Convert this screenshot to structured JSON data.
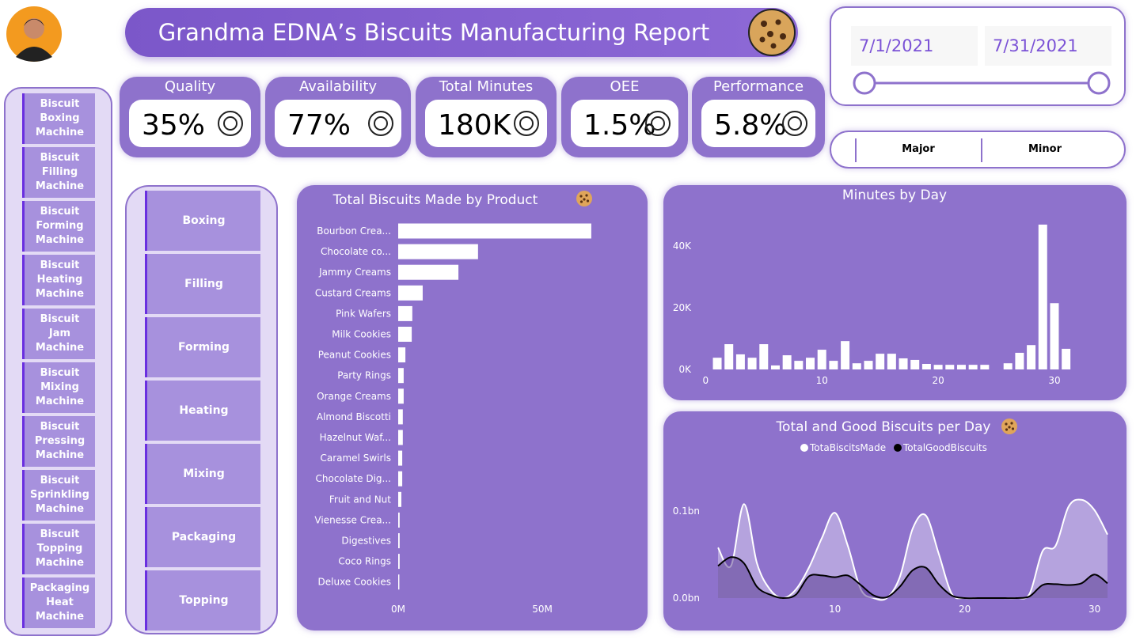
{
  "header": {
    "title": "Grandma EDNA’s Biscuits Manufacturing Report"
  },
  "date_slicer": {
    "start": "7/1/2021",
    "end": "7/31/2021"
  },
  "type_buttons": [
    "Major",
    "Minor"
  ],
  "kpis": [
    {
      "label": "Quality",
      "value": "35%"
    },
    {
      "label": "Availability",
      "value": "77%"
    },
    {
      "label": "Total Minutes",
      "value": "180K"
    },
    {
      "label": "OEE",
      "value": "1.5%"
    },
    {
      "label": "Performance",
      "value": "5.8%"
    }
  ],
  "machines": [
    "Biscuit Boxing Machine",
    "Biscuit Filling Machine",
    "Biscuit Forming Machine",
    "Biscuit Heating Machine",
    "Biscuit Jam Machine",
    "Biscuit Mixing Machine",
    "Biscuit Pressing Machine",
    "Biscuit Sprinkling Machine",
    "Biscuit Topping Machine",
    "Packaging Heat Machine"
  ],
  "processes": [
    "Boxing",
    "Filling",
    "Forming",
    "Heating",
    "Mixing",
    "Packaging",
    "Topping"
  ],
  "chart_data": [
    {
      "type": "hbar",
      "title": "Total Biscuits Made by Product",
      "categories": [
        "Bourbon Crea...",
        "Chocolate co...",
        "Jammy Creams",
        "Custard Creams",
        "Pink Wafers",
        "Milk Cookies",
        "Peanut Cookies",
        "Party Rings",
        "Orange Creams",
        "Almond Biscotti",
        "Hazelnut Waf...",
        "Caramel Swirls",
        "Chocolate Dig...",
        "Fruit and Nut",
        "Vienesse Crea...",
        "Digestives",
        "Coco Rings",
        "Deluxe Cookies"
      ],
      "values": [
        67000000,
        27700000,
        20900000,
        8500000,
        4900000,
        4700000,
        2500000,
        1900000,
        1900000,
        1600000,
        1600000,
        1400000,
        1400000,
        1100000,
        500000,
        500000,
        500000,
        400000
      ],
      "color": "#ffffff",
      "xlim": [
        0,
        84000000
      ],
      "xticks": [
        {
          "value": 0,
          "label": "0M"
        },
        {
          "value": 50000000,
          "label": "50M"
        }
      ]
    },
    {
      "type": "bar",
      "title": "Minutes by Day",
      "x": [
        1,
        2,
        3,
        4,
        5,
        6,
        7,
        8,
        9,
        10,
        11,
        12,
        13,
        14,
        15,
        16,
        17,
        18,
        19,
        20,
        21,
        22,
        23,
        24,
        26,
        27,
        28,
        29,
        30,
        31
      ],
      "values": [
        3800,
        8200,
        4900,
        3800,
        8200,
        1300,
        4600,
        2800,
        3800,
        6400,
        2800,
        9200,
        2000,
        2800,
        5100,
        5100,
        3600,
        3100,
        1800,
        1500,
        1500,
        1500,
        1500,
        1500,
        2000,
        5400,
        7900,
        47000,
        21500,
        6700
      ],
      "color": "#ffffff",
      "xlim": [
        -0.5,
        31.5
      ],
      "xticks": [
        0,
        10,
        20,
        30
      ],
      "ylim": [
        0,
        48000
      ],
      "yticks": [
        {
          "value": 0,
          "label": "0K"
        },
        {
          "value": 20000,
          "label": "20K"
        },
        {
          "value": 40000,
          "label": "40K"
        }
      ]
    },
    {
      "type": "area",
      "title": "Total and Good Biscuits per Day",
      "x": [
        1,
        2,
        3,
        4,
        5,
        6,
        7,
        8,
        9,
        10,
        11,
        12,
        13,
        14,
        15,
        16,
        17,
        18,
        19,
        20,
        21,
        22,
        23,
        24,
        25,
        26,
        27,
        28,
        29,
        30,
        31
      ],
      "series": [
        {
          "name": "TotaBiscitsMade",
          "color": "#ffffff",
          "values": [
            0.058,
            0.037,
            0.108,
            0.04,
            0.01,
            0,
            0.01,
            0.035,
            0.069,
            0.098,
            0.06,
            0.01,
            0,
            0,
            0.024,
            0.08,
            0.095,
            0.051,
            0.005,
            0,
            0,
            0,
            0,
            0,
            0.005,
            0.054,
            0.06,
            0.105,
            0.113,
            0.101,
            0.073
          ]
        },
        {
          "name": "TotalGoodBiscuits",
          "color": "#000000",
          "values": [
            0.037,
            0.047,
            0.04,
            0.013,
            0.004,
            0,
            0.004,
            0.025,
            0.026,
            0.024,
            0.026,
            0.015,
            0.003,
            0.001,
            0.013,
            0.032,
            0.035,
            0.016,
            0.003,
            0,
            0,
            0,
            0,
            0,
            0.002,
            0.015,
            0.016,
            0.015,
            0.017,
            0.027,
            0.017
          ]
        }
      ],
      "xlim": [
        1,
        31
      ],
      "xticks": [
        10,
        20,
        30
      ],
      "ylim": [
        0,
        0.15
      ],
      "yticks": [
        {
          "value": 0,
          "label": "0.0bn"
        },
        {
          "value": 0.1,
          "label": "0.1bn"
        }
      ]
    }
  ]
}
